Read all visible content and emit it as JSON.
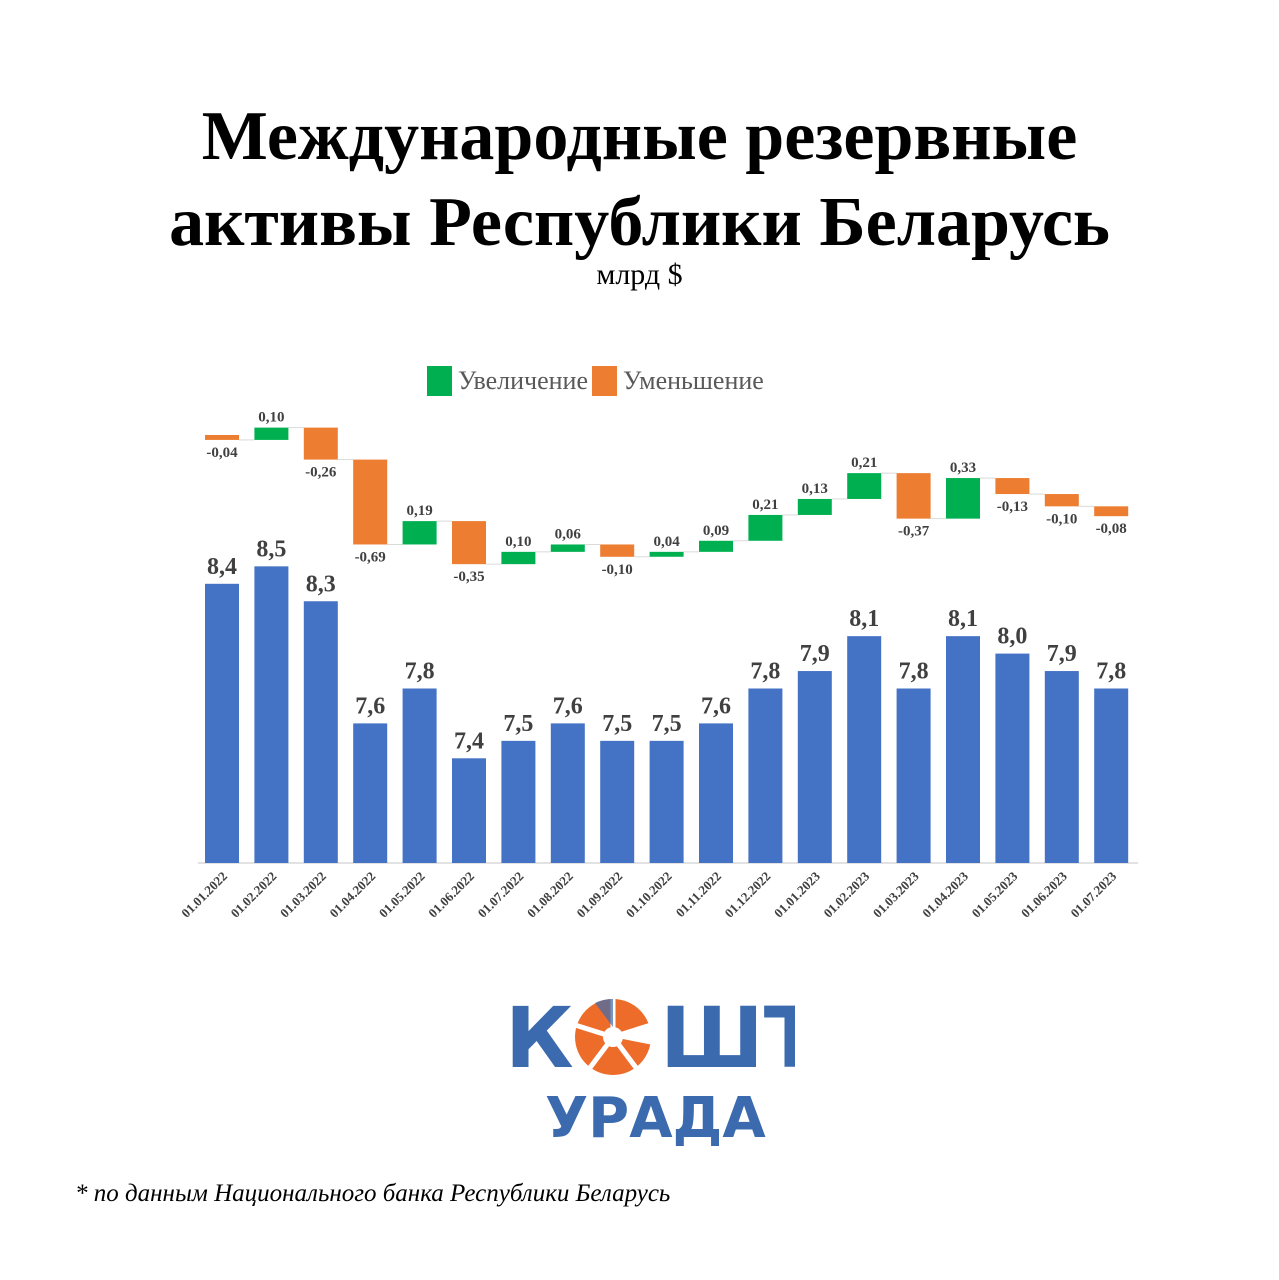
{
  "title_line1": "Международные резервные",
  "title_line2": "активы Республики Беларусь",
  "subtitle": "млрд $",
  "legend": {
    "increase": "Увеличение",
    "decrease": "Уменьшение"
  },
  "colors": {
    "bar": "#4472C4",
    "increase": "#00B050",
    "decrease": "#ED7D31"
  },
  "chart_data": [
    {
      "type": "bar",
      "title": "Международные резервные активы Республики Беларусь",
      "ylabel": "млрд $",
      "categories": [
        "01.01.2022",
        "01.02.2022",
        "01.03.2022",
        "01.04.2022",
        "01.05.2022",
        "01.06.2022",
        "01.07.2022",
        "01.08.2022",
        "01.09.2022",
        "01.10.2022",
        "01.11.2022",
        "01.12.2022",
        "01.01.2023",
        "01.02.2023",
        "01.03.2023",
        "01.04.2023",
        "01.05.2023",
        "01.06.2023",
        "01.07.2023"
      ],
      "values": [
        8.4,
        8.5,
        8.3,
        7.6,
        7.8,
        7.4,
        7.5,
        7.6,
        7.5,
        7.5,
        7.6,
        7.8,
        7.9,
        8.1,
        7.8,
        8.1,
        8.0,
        7.9,
        7.8
      ],
      "labels": [
        "8,4",
        "8,5",
        "8,3",
        "7,6",
        "7,8",
        "7,4",
        "7,5",
        "7,6",
        "7,5",
        "7,5",
        "7,6",
        "7,8",
        "7,9",
        "8,1",
        "7,8",
        "8,1",
        "8,0",
        "7,9",
        "7,8"
      ],
      "grid": false
    },
    {
      "type": "waterfall",
      "legend": [
        "Увеличение",
        "Уменьшение"
      ],
      "legend_position": "top",
      "values": [
        -0.04,
        0.1,
        -0.26,
        -0.69,
        0.19,
        -0.35,
        0.1,
        0.06,
        -0.1,
        0.04,
        0.09,
        0.21,
        0.13,
        0.21,
        -0.37,
        0.33,
        -0.13,
        -0.1,
        -0.08
      ],
      "labels": [
        "-0,04",
        "0,10",
        "-0,26",
        "-0,69",
        "0,19",
        "-0,35",
        "0,10",
        "0,06",
        "-0,10",
        "0,04",
        "0,09",
        "0,21",
        "0,13",
        "0,21",
        "-0,37",
        "0,33",
        "-0,13",
        "-0,10",
        "-0,08"
      ]
    }
  ],
  "logo": {
    "line1": "КОШТ",
    "line2": "УРАДА"
  },
  "footnote": "* по данным Национального банка Республики Беларусь"
}
